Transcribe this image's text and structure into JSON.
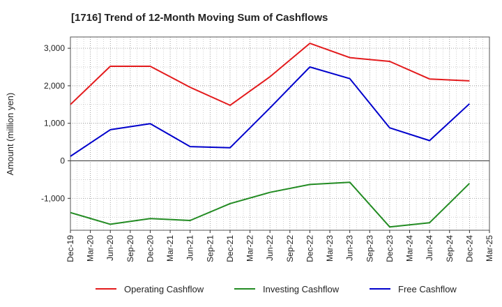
{
  "chart_data": {
    "type": "line",
    "title": "[1716]  Trend of 12-Month Moving Sum of Cashflows",
    "xlabel": "",
    "ylabel": "Amount (million yen)",
    "x_ticks": [
      "Dec-19",
      "Mar-20",
      "Jun-20",
      "Sep-20",
      "Dec-20",
      "Mar-21",
      "Jun-21",
      "Sep-21",
      "Dec-21",
      "Mar-22",
      "Jun-22",
      "Sep-22",
      "Dec-22",
      "Mar-23",
      "Jun-23",
      "Sep-23",
      "Dec-23",
      "Mar-24",
      "Jun-24",
      "Sep-24",
      "Dec-24",
      "Mar-25"
    ],
    "y_ticks": [
      -1000,
      0,
      1000,
      2000,
      3000
    ],
    "y_tick_labels": [
      "-1,000",
      "0",
      "1,000",
      "2,000",
      "3,000"
    ],
    "ylim": [
      -1850,
      3300
    ],
    "grid": true,
    "legend_position": "bottom",
    "x": [
      "Dec-19",
      "Jun-20",
      "Dec-20",
      "Jun-21",
      "Dec-21",
      "Jun-22",
      "Dec-22",
      "Jun-23",
      "Dec-23",
      "Jun-24",
      "Dec-24"
    ],
    "series": [
      {
        "name": "Operating Cashflow",
        "color": "#e31a1c",
        "values": [
          1500,
          2520,
          2520,
          1960,
          1480,
          2240,
          3130,
          2750,
          2650,
          2180,
          2130
        ]
      },
      {
        "name": "Investing Cashflow",
        "color": "#228b22",
        "values": [
          -1380,
          -1690,
          -1540,
          -1590,
          -1140,
          -840,
          -630,
          -570,
          -1760,
          -1650,
          -600
        ]
      },
      {
        "name": "Free Cashflow",
        "color": "#0000cc",
        "values": [
          120,
          830,
          990,
          380,
          350,
          1410,
          2500,
          2190,
          880,
          540,
          1520
        ]
      }
    ]
  }
}
